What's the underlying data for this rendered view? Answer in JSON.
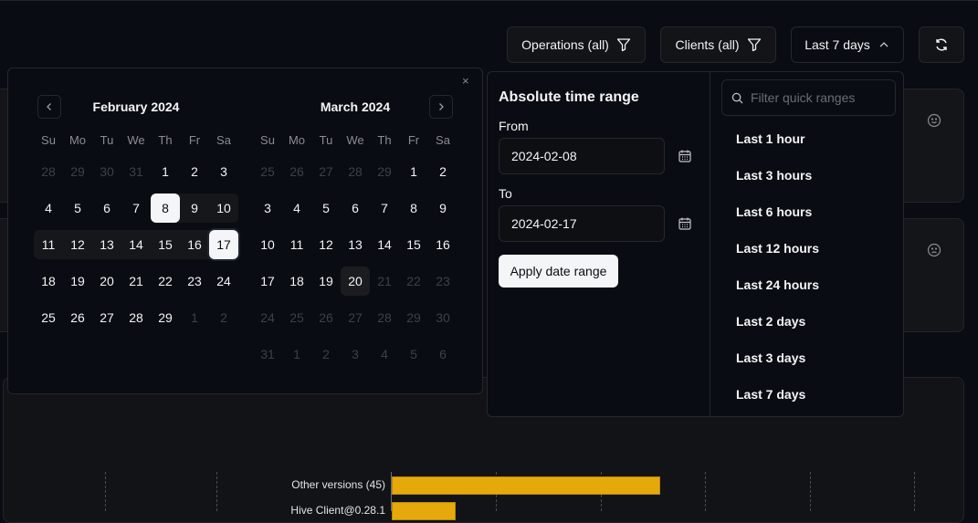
{
  "toolbar": {
    "operations": "Operations (all)",
    "clients": "Clients (all)",
    "range": "Last 7 days",
    "filter_icon": "filter-icon",
    "refresh_icon": "refresh-icon"
  },
  "calendar": {
    "close": "×",
    "weekdays": [
      "Su",
      "Mo",
      "Tu",
      "We",
      "Th",
      "Fr",
      "Sa"
    ],
    "months": [
      {
        "title": "February 2024",
        "days": [
          [
            28,
            29,
            30,
            31,
            1,
            2,
            3
          ],
          [
            4,
            5,
            6,
            7,
            8,
            9,
            10
          ],
          [
            11,
            12,
            13,
            14,
            15,
            16,
            17
          ],
          [
            18,
            19,
            20,
            21,
            22,
            23,
            24
          ],
          [
            25,
            26,
            27,
            28,
            29,
            1,
            2
          ]
        ],
        "outside": [
          [
            0,
            0
          ],
          [
            0,
            1
          ],
          [
            0,
            2
          ],
          [
            0,
            3
          ],
          [
            4,
            5
          ],
          [
            4,
            6
          ]
        ]
      },
      {
        "title": "March 2024",
        "days": [
          [
            25,
            26,
            27,
            28,
            29,
            1,
            2
          ],
          [
            3,
            4,
            5,
            6,
            7,
            8,
            9
          ],
          [
            10,
            11,
            12,
            13,
            14,
            15,
            16
          ],
          [
            17,
            18,
            19,
            20,
            21,
            22,
            23
          ],
          [
            24,
            25,
            26,
            27,
            28,
            29,
            30
          ],
          [
            31,
            1,
            2,
            3,
            4,
            5,
            6
          ]
        ],
        "outside": [
          [
            0,
            0
          ],
          [
            0,
            1
          ],
          [
            0,
            2
          ],
          [
            0,
            3
          ],
          [
            0,
            4
          ],
          [
            3,
            4
          ],
          [
            3,
            5
          ],
          [
            3,
            6
          ],
          [
            4,
            0
          ],
          [
            4,
            1
          ],
          [
            4,
            2
          ],
          [
            4,
            3
          ],
          [
            4,
            4
          ],
          [
            4,
            5
          ],
          [
            4,
            6
          ],
          [
            5,
            0
          ],
          [
            5,
            1
          ],
          [
            5,
            2
          ],
          [
            5,
            3
          ],
          [
            5,
            4
          ],
          [
            5,
            5
          ],
          [
            5,
            6
          ]
        ]
      }
    ],
    "range_start": "2024-02-08",
    "range_end": "2024-02-17",
    "today": "2024-03-20"
  },
  "absolute": {
    "title": "Absolute time range",
    "from_label": "From",
    "from_value": "2024-02-08",
    "to_label": "To",
    "to_value": "2024-02-17",
    "apply": "Apply date range"
  },
  "quick": {
    "placeholder": "Filter quick ranges",
    "items": [
      "Last 1 hour",
      "Last 3 hours",
      "Last 6 hours",
      "Last 12 hours",
      "Last 24 hours",
      "Last 2 days",
      "Last 3 days",
      "Last 7 days"
    ]
  },
  "background_cards": [
    {
      "icon": "smile-icon"
    },
    {
      "icon": "frown-icon"
    }
  ],
  "chart_data": {
    "type": "bar",
    "orientation": "horizontal",
    "categories": [
      "Other versions (45)",
      "Hive Client@0.28.1"
    ],
    "values": [
      2.58,
      0.61
    ],
    "bar_color": "#e5a90b",
    "grid": true
  }
}
